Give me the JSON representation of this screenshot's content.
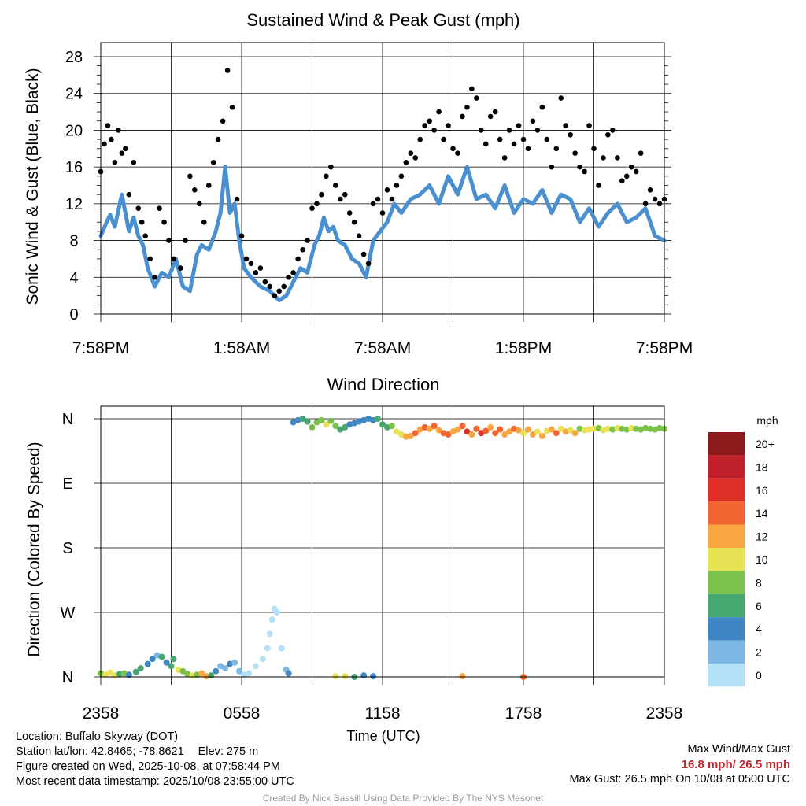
{
  "chart_data": [
    {
      "type": "line",
      "title": "Sustained Wind & Peak Gust (mph)",
      "xlabel": "",
      "ylabel": "Sonic Wind & Gust (Blue, Black)",
      "ylim": [
        0,
        28
      ],
      "yticks": [
        "0",
        "4",
        "8",
        "12",
        "16",
        "20",
        "24",
        "28"
      ],
      "xticks": [
        "7:58PM",
        "1:58AM",
        "7:58AM",
        "1:58PM",
        "7:58PM"
      ],
      "x_hours_range": [
        0,
        24
      ],
      "grid": true,
      "series": [
        {
          "name": "Sustained Wind",
          "color": "#4a90d0",
          "style": "line",
          "x": [
            0,
            0.25,
            0.4,
            0.6,
            0.9,
            1.2,
            1.4,
            1.6,
            1.8,
            2.0,
            2.3,
            2.6,
            2.9,
            3.2,
            3.5,
            3.8,
            4.1,
            4.3,
            4.6,
            4.9,
            5.1,
            5.3,
            5.5,
            5.7,
            5.9,
            6.1,
            6.4,
            6.8,
            7.2,
            7.6,
            7.9,
            8.2,
            8.5,
            8.8,
            9.1,
            9.3,
            9.5,
            9.7,
            9.9,
            10.1,
            10.4,
            10.7,
            11.0,
            11.3,
            11.6,
            11.9,
            12.2,
            12.5,
            12.8,
            13.2,
            13.6,
            14.0,
            14.4,
            14.8,
            15.2,
            15.6,
            16.0,
            16.4,
            16.8,
            17.2,
            17.6,
            18.0,
            18.4,
            18.8,
            19.2,
            19.6,
            20.0,
            20.4,
            20.8,
            21.2,
            21.6,
            22.0,
            22.4,
            22.8,
            23.2,
            23.6,
            24.0
          ],
          "values": [
            8.5,
            10.0,
            10.8,
            9.5,
            13.0,
            9.0,
            10.5,
            8.5,
            7.5,
            5.0,
            3.0,
            4.5,
            4.0,
            6.0,
            3.0,
            2.5,
            6.5,
            7.5,
            7.0,
            9.0,
            11.0,
            16.0,
            11.0,
            12.0,
            8.0,
            5.0,
            4.0,
            3.0,
            2.5,
            1.5,
            2.0,
            3.5,
            5.0,
            4.5,
            7.5,
            8.5,
            10.5,
            9.0,
            9.5,
            8.0,
            7.5,
            6.0,
            5.5,
            4.0,
            8.0,
            9.0,
            10.0,
            12.0,
            11.0,
            12.5,
            13.0,
            14.0,
            12.0,
            15.0,
            13.0,
            16.0,
            12.5,
            13.0,
            11.5,
            14.0,
            11.0,
            12.5,
            12.0,
            13.5,
            11.0,
            13.0,
            12.5,
            10.0,
            11.5,
            9.5,
            11.0,
            12.0,
            10.0,
            10.5,
            11.5,
            8.5,
            8.0
          ]
        },
        {
          "name": "Peak Gust",
          "color": "#000000",
          "style": "scatter",
          "x": [
            0,
            0.15,
            0.3,
            0.45,
            0.6,
            0.75,
            0.9,
            1.05,
            1.2,
            1.4,
            1.6,
            1.75,
            1.9,
            2.1,
            2.3,
            2.5,
            2.7,
            2.9,
            3.1,
            3.4,
            3.6,
            3.8,
            4.0,
            4.2,
            4.4,
            4.6,
            4.8,
            5.0,
            5.2,
            5.4,
            5.6,
            5.8,
            6.0,
            6.2,
            6.4,
            6.6,
            6.8,
            7.0,
            7.2,
            7.4,
            7.6,
            7.8,
            8.0,
            8.2,
            8.4,
            8.6,
            8.8,
            9.0,
            9.2,
            9.4,
            9.6,
            9.8,
            10.0,
            10.2,
            10.4,
            10.6,
            10.8,
            11.0,
            11.2,
            11.4,
            11.6,
            11.8,
            12.0,
            12.2,
            12.4,
            12.6,
            12.8,
            13.0,
            13.2,
            13.4,
            13.6,
            13.8,
            14.0,
            14.2,
            14.4,
            14.6,
            14.8,
            15.0,
            15.2,
            15.4,
            15.6,
            15.8,
            16.0,
            16.2,
            16.4,
            16.6,
            16.8,
            17.0,
            17.2,
            17.4,
            17.6,
            17.8,
            18.0,
            18.2,
            18.4,
            18.6,
            18.8,
            19.0,
            19.2,
            19.4,
            19.6,
            19.8,
            20.0,
            20.2,
            20.4,
            20.6,
            20.8,
            21.0,
            21.2,
            21.4,
            21.6,
            21.8,
            22.0,
            22.2,
            22.4,
            22.6,
            22.8,
            23.0,
            23.2,
            23.4,
            23.6,
            23.8,
            24.0
          ],
          "values": [
            15.5,
            18.5,
            20.5,
            19.0,
            16.5,
            20.0,
            17.5,
            18.0,
            13.0,
            16.5,
            11.5,
            10.0,
            8.5,
            6.0,
            4.0,
            11.5,
            10.0,
            8.0,
            6.0,
            5.0,
            8.0,
            15.0,
            13.5,
            12.0,
            10.0,
            14.0,
            16.5,
            19.0,
            21.0,
            26.5,
            22.5,
            12.5,
            8.5,
            6.0,
            5.5,
            4.5,
            5.0,
            3.5,
            3.0,
            2.0,
            2.5,
            3.0,
            4.0,
            4.5,
            6.0,
            7.0,
            8.0,
            11.5,
            12.0,
            13.0,
            15.0,
            16.0,
            14.0,
            12.5,
            13.0,
            11.0,
            10.0,
            8.5,
            6.5,
            5.5,
            12.0,
            12.5,
            11.0,
            13.5,
            12.5,
            14.0,
            15.0,
            16.5,
            17.5,
            17.0,
            19.0,
            20.5,
            21.0,
            20.0,
            22.0,
            19.0,
            20.5,
            18.0,
            17.5,
            21.5,
            22.5,
            24.5,
            23.5,
            20.0,
            18.5,
            21.5,
            22.0,
            19.0,
            17.0,
            20.0,
            18.5,
            20.5,
            19.0,
            18.0,
            21.0,
            20.0,
            22.5,
            19.0,
            16.0,
            18.0,
            23.5,
            20.5,
            19.5,
            17.5,
            16.0,
            15.5,
            20.5,
            18.0,
            14.0,
            17.0,
            19.5,
            20.0,
            17.0,
            14.5,
            15.0,
            16.0,
            15.5,
            17.5,
            12.0,
            13.5,
            12.5,
            12.0,
            12.5
          ]
        }
      ]
    },
    {
      "type": "scatter",
      "title": "Wind Direction",
      "xlabel": "Time (UTC)",
      "ylabel": "Direction (Colored By Speed)",
      "yticks": [
        "N",
        "W",
        "S",
        "E",
        "N"
      ],
      "ylim_degrees": [
        0,
        360
      ],
      "xticks": [
        "2358",
        "0558",
        "1158",
        "1758",
        "2358"
      ],
      "x_hours_range": [
        0,
        24
      ],
      "grid": true,
      "colorbar": {
        "title": "mph",
        "labels": [
          "20+",
          "18",
          "16",
          "14",
          "12",
          "10",
          "8",
          "6",
          "4",
          "2",
          "0"
        ],
        "colors": [
          "#8b1a1a",
          "#c0202a",
          "#dc3027",
          "#f06530",
          "#f9a540",
          "#e8e255",
          "#7cc24a",
          "#46a771",
          "#3f86c4",
          "#7db8e5",
          "#b5e1f7"
        ]
      },
      "points": {
        "x": [
          0,
          0.2,
          0.4,
          0.6,
          0.8,
          1.0,
          1.2,
          1.5,
          1.7,
          2.0,
          2.2,
          2.4,
          2.6,
          2.8,
          3.0,
          3.1,
          3.3,
          3.5,
          3.7,
          3.9,
          4.1,
          4.3,
          4.5,
          4.7,
          4.9,
          5.1,
          5.3,
          5.5,
          5.7,
          5.9,
          6.1,
          6.3,
          6.6,
          6.9,
          7.1,
          7.2,
          7.3,
          7.4,
          7.5,
          7.7,
          7.9,
          8.0,
          8.2,
          8.4,
          8.6,
          8.8,
          9.0,
          9.2,
          9.4,
          9.6,
          9.8,
          10.0,
          10.2,
          10.4,
          10.6,
          10.8,
          11.0,
          11.2,
          11.4,
          11.6,
          11.8,
          12.0,
          12.2,
          12.4,
          12.6,
          12.8,
          13.0,
          13.2,
          13.4,
          13.6,
          13.8,
          14.0,
          14.2,
          14.4,
          14.6,
          14.8,
          15.0,
          15.2,
          15.4,
          15.6,
          15.8,
          16.0,
          16.2,
          16.4,
          16.6,
          16.8,
          17.0,
          17.2,
          17.4,
          17.6,
          17.8,
          18.0,
          18.2,
          18.4,
          18.6,
          18.8,
          19.0,
          19.2,
          19.4,
          19.6,
          19.8,
          20.0,
          20.2,
          20.4,
          20.6,
          20.8,
          21.0,
          21.2,
          21.4,
          21.6,
          21.8,
          22.0,
          22.2,
          22.4,
          22.6,
          22.8,
          23.0,
          23.2,
          23.4,
          23.6,
          23.8,
          24.0,
          10.0,
          10.4,
          10.8,
          11.2,
          11.6,
          15.4,
          18.0
        ],
        "y": [
          5,
          3,
          6,
          2,
          4,
          5,
          3,
          7,
          12,
          18,
          25,
          30,
          28,
          20,
          15,
          25,
          10,
          8,
          4,
          2,
          3,
          5,
          1,
          2,
          8,
          15,
          12,
          18,
          20,
          8,
          3,
          5,
          15,
          25,
          40,
          60,
          80,
          95,
          90,
          40,
          10,
          5,
          355,
          358,
          360,
          356,
          348,
          355,
          358,
          352,
          357,
          350,
          345,
          348,
          352,
          354,
          356,
          358,
          360,
          358,
          360,
          352,
          348,
          350,
          342,
          338,
          335,
          336,
          340,
          345,
          348,
          346,
          350,
          344,
          340,
          338,
          342,
          345,
          350,
          342,
          338,
          346,
          340,
          343,
          348,
          340,
          345,
          338,
          342,
          346,
          344,
          340,
          345,
          338,
          342,
          336,
          343,
          345,
          340,
          346,
          342,
          344,
          340,
          346,
          344,
          345,
          346,
          347,
          344,
          346,
          345,
          347,
          346,
          345,
          347,
          346,
          345,
          347,
          346,
          345,
          347,
          346,
          1,
          1,
          0,
          2,
          1,
          1,
          0
        ],
        "speed_mph": [
          8,
          10,
          10,
          11,
          7,
          9,
          5,
          6,
          6,
          4,
          4,
          3,
          6,
          4,
          7,
          7,
          10,
          8,
          9,
          11,
          9,
          13,
          13,
          7,
          4,
          2,
          2,
          4,
          2,
          3,
          1,
          0,
          1,
          1,
          1,
          0,
          0,
          0,
          0,
          1,
          2,
          4,
          4,
          5,
          6,
          7,
          8,
          8,
          9,
          10,
          8,
          8,
          7,
          6,
          5,
          4,
          4,
          4,
          4,
          5,
          6,
          6,
          7,
          8,
          10,
          11,
          12,
          12,
          14,
          13,
          15,
          12,
          14,
          13,
          14,
          15,
          12,
          13,
          14,
          16,
          12,
          15,
          16,
          14,
          13,
          15,
          14,
          13,
          12,
          14,
          12,
          11,
          13,
          12,
          11,
          12,
          10,
          12,
          14,
          11,
          13,
          10,
          12,
          9,
          10,
          11,
          10,
          9,
          10,
          11,
          9,
          10,
          8,
          9,
          10,
          9,
          8,
          9,
          8,
          9,
          8,
          8,
          10,
          10,
          7,
          5,
          4,
          13,
          14
        ]
      }
    }
  ],
  "footer": {
    "location": "Location: Buffalo Skyway (DOT)",
    "latlon": "Station lat/lon: 42.8465; -78.8621",
    "elev": "Elev: 275 m",
    "created": "Figure created on Wed, 2025-10-08, at 07:58:44 PM",
    "recent": "Most recent data timestamp: 2025/10/08 23:55:00 UTC",
    "max_label": "Max Wind/Max Gust",
    "max_values": "16.8 mph/ 26.5 mph",
    "max_gust": "Max Gust: 26.5 mph On 10/08 at 0500 UTC",
    "credit": "Created By Nick Bassill Using Data Provided By The NYS Mesonet"
  }
}
